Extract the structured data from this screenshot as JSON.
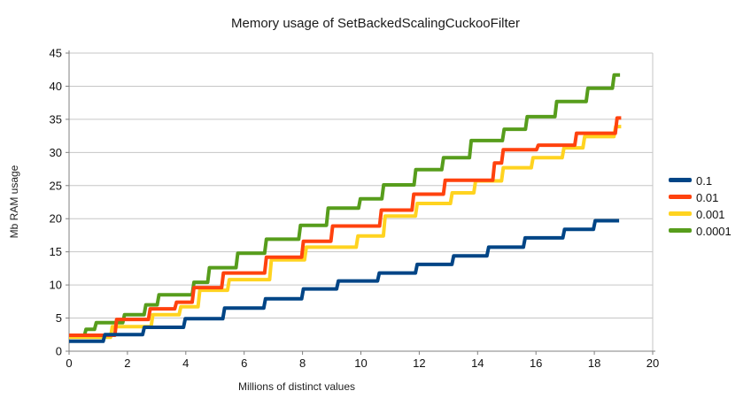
{
  "title": "Memory usage of SetBackedScalingCuckooFilter",
  "chart_data": {
    "type": "line",
    "subtype": "step",
    "title": "Memory usage of SetBackedScalingCuckooFilter",
    "xlabel": "Millions of distinct values",
    "ylabel": "Mb RAM usage",
    "xlim": [
      0,
      20
    ],
    "ylim": [
      0,
      45
    ],
    "x_ticks": [
      0,
      2,
      4,
      6,
      8,
      10,
      12,
      14,
      16,
      18,
      20
    ],
    "y_ticks": [
      0,
      5,
      10,
      15,
      20,
      25,
      30,
      35,
      40,
      45
    ],
    "grid": "horizontal-only",
    "legend_position": "right",
    "grid_color": "#c6c6c6",
    "axis_color": "#808080",
    "series": [
      {
        "name": "0.1",
        "color": "#004586",
        "x_end": 18.85,
        "steps": [
          [
            0,
            1.5
          ],
          [
            1.2,
            2.5
          ],
          [
            2.55,
            3.6
          ],
          [
            3.95,
            4.9
          ],
          [
            5.3,
            6.5
          ],
          [
            6.7,
            7.9
          ],
          [
            8.0,
            9.4
          ],
          [
            9.2,
            10.6
          ],
          [
            10.6,
            11.8
          ],
          [
            11.9,
            13.1
          ],
          [
            13.15,
            14.4
          ],
          [
            14.35,
            15.7
          ],
          [
            15.6,
            17.1
          ],
          [
            16.95,
            18.4
          ],
          [
            18.0,
            19.7
          ]
        ]
      },
      {
        "name": "0.01",
        "color": "#FF420E",
        "x_end": 18.92,
        "steps": [
          [
            0,
            2.4
          ],
          [
            1.6,
            4.8
          ],
          [
            2.75,
            6.4
          ],
          [
            3.65,
            7.4
          ],
          [
            4.25,
            9.6
          ],
          [
            5.26,
            11.8
          ],
          [
            6.73,
            14.2
          ],
          [
            8.0,
            16.6
          ],
          [
            9.0,
            18.9
          ],
          [
            10.67,
            21.3
          ],
          [
            11.78,
            23.7
          ],
          [
            12.86,
            25.8
          ],
          [
            14.55,
            28.4
          ],
          [
            14.85,
            30.4
          ],
          [
            16.05,
            31.1
          ],
          [
            17.36,
            32.9
          ],
          [
            18.75,
            35.2
          ]
        ]
      },
      {
        "name": "0.001",
        "color": "#FFD320",
        "x_end": 18.92,
        "steps": [
          [
            0,
            2.1
          ],
          [
            1.45,
            3.7
          ],
          [
            2.84,
            5.5
          ],
          [
            3.8,
            6.7
          ],
          [
            4.45,
            9.2
          ],
          [
            5.46,
            10.8
          ],
          [
            6.9,
            13.8
          ],
          [
            8.1,
            15.7
          ],
          [
            9.87,
            17.4
          ],
          [
            10.8,
            20.4
          ],
          [
            11.9,
            22.3
          ],
          [
            13.1,
            23.9
          ],
          [
            13.9,
            25.7
          ],
          [
            14.85,
            27.7
          ],
          [
            15.87,
            29.2
          ],
          [
            16.93,
            30.7
          ],
          [
            17.64,
            32.4
          ],
          [
            18.7,
            33.9
          ]
        ]
      },
      {
        "name": "0.0001",
        "color": "#579D1C",
        "x_end": 18.88,
        "steps": [
          [
            0,
            2.2
          ],
          [
            0.55,
            3.3
          ],
          [
            0.9,
            4.3
          ],
          [
            1.87,
            5.5
          ],
          [
            2.6,
            7.0
          ],
          [
            3.05,
            8.5
          ],
          [
            4.25,
            10.4
          ],
          [
            4.78,
            12.6
          ],
          [
            5.75,
            14.8
          ],
          [
            6.73,
            16.9
          ],
          [
            7.9,
            19.0
          ],
          [
            8.85,
            21.6
          ],
          [
            9.95,
            23.0
          ],
          [
            10.75,
            25.1
          ],
          [
            11.85,
            27.4
          ],
          [
            12.8,
            29.2
          ],
          [
            13.75,
            31.8
          ],
          [
            14.88,
            33.5
          ],
          [
            15.67,
            35.4
          ],
          [
            16.68,
            37.7
          ],
          [
            17.75,
            39.7
          ],
          [
            18.65,
            41.7
          ]
        ]
      }
    ]
  }
}
